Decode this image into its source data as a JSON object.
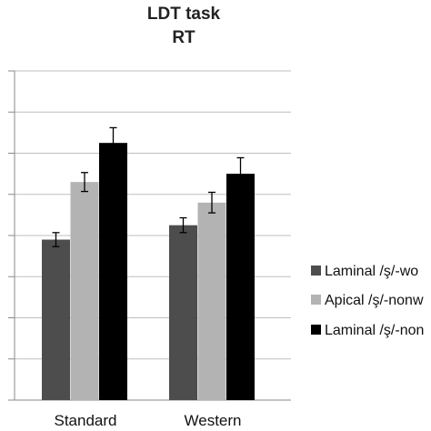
{
  "chart_data": {
    "type": "bar",
    "title_lines": [
      "LDT task",
      "RT"
    ],
    "categories": [
      "Standard",
      "Western"
    ],
    "series": [
      {
        "name": "Laminal /ş/-wo",
        "color": "#4d4d4d",
        "values": [
          39,
          42.5
        ],
        "errors": [
          1.7,
          1.8
        ]
      },
      {
        "name": "Apical /ş/-nonw",
        "color": "#b3b3b3",
        "values": [
          53,
          48
        ],
        "errors": [
          2.3,
          2.5
        ]
      },
      {
        "name": "Laminal /ş/-non",
        "color": "#000000",
        "values": [
          62.5,
          55
        ],
        "errors": [
          3.7,
          3.9
        ]
      }
    ],
    "ylim": [
      0,
      80
    ],
    "y_ticks": [
      0,
      10,
      20,
      30,
      40,
      50,
      60,
      70,
      80
    ],
    "grid": true,
    "legend_position": "right",
    "xlabel": "",
    "ylabel": ""
  }
}
